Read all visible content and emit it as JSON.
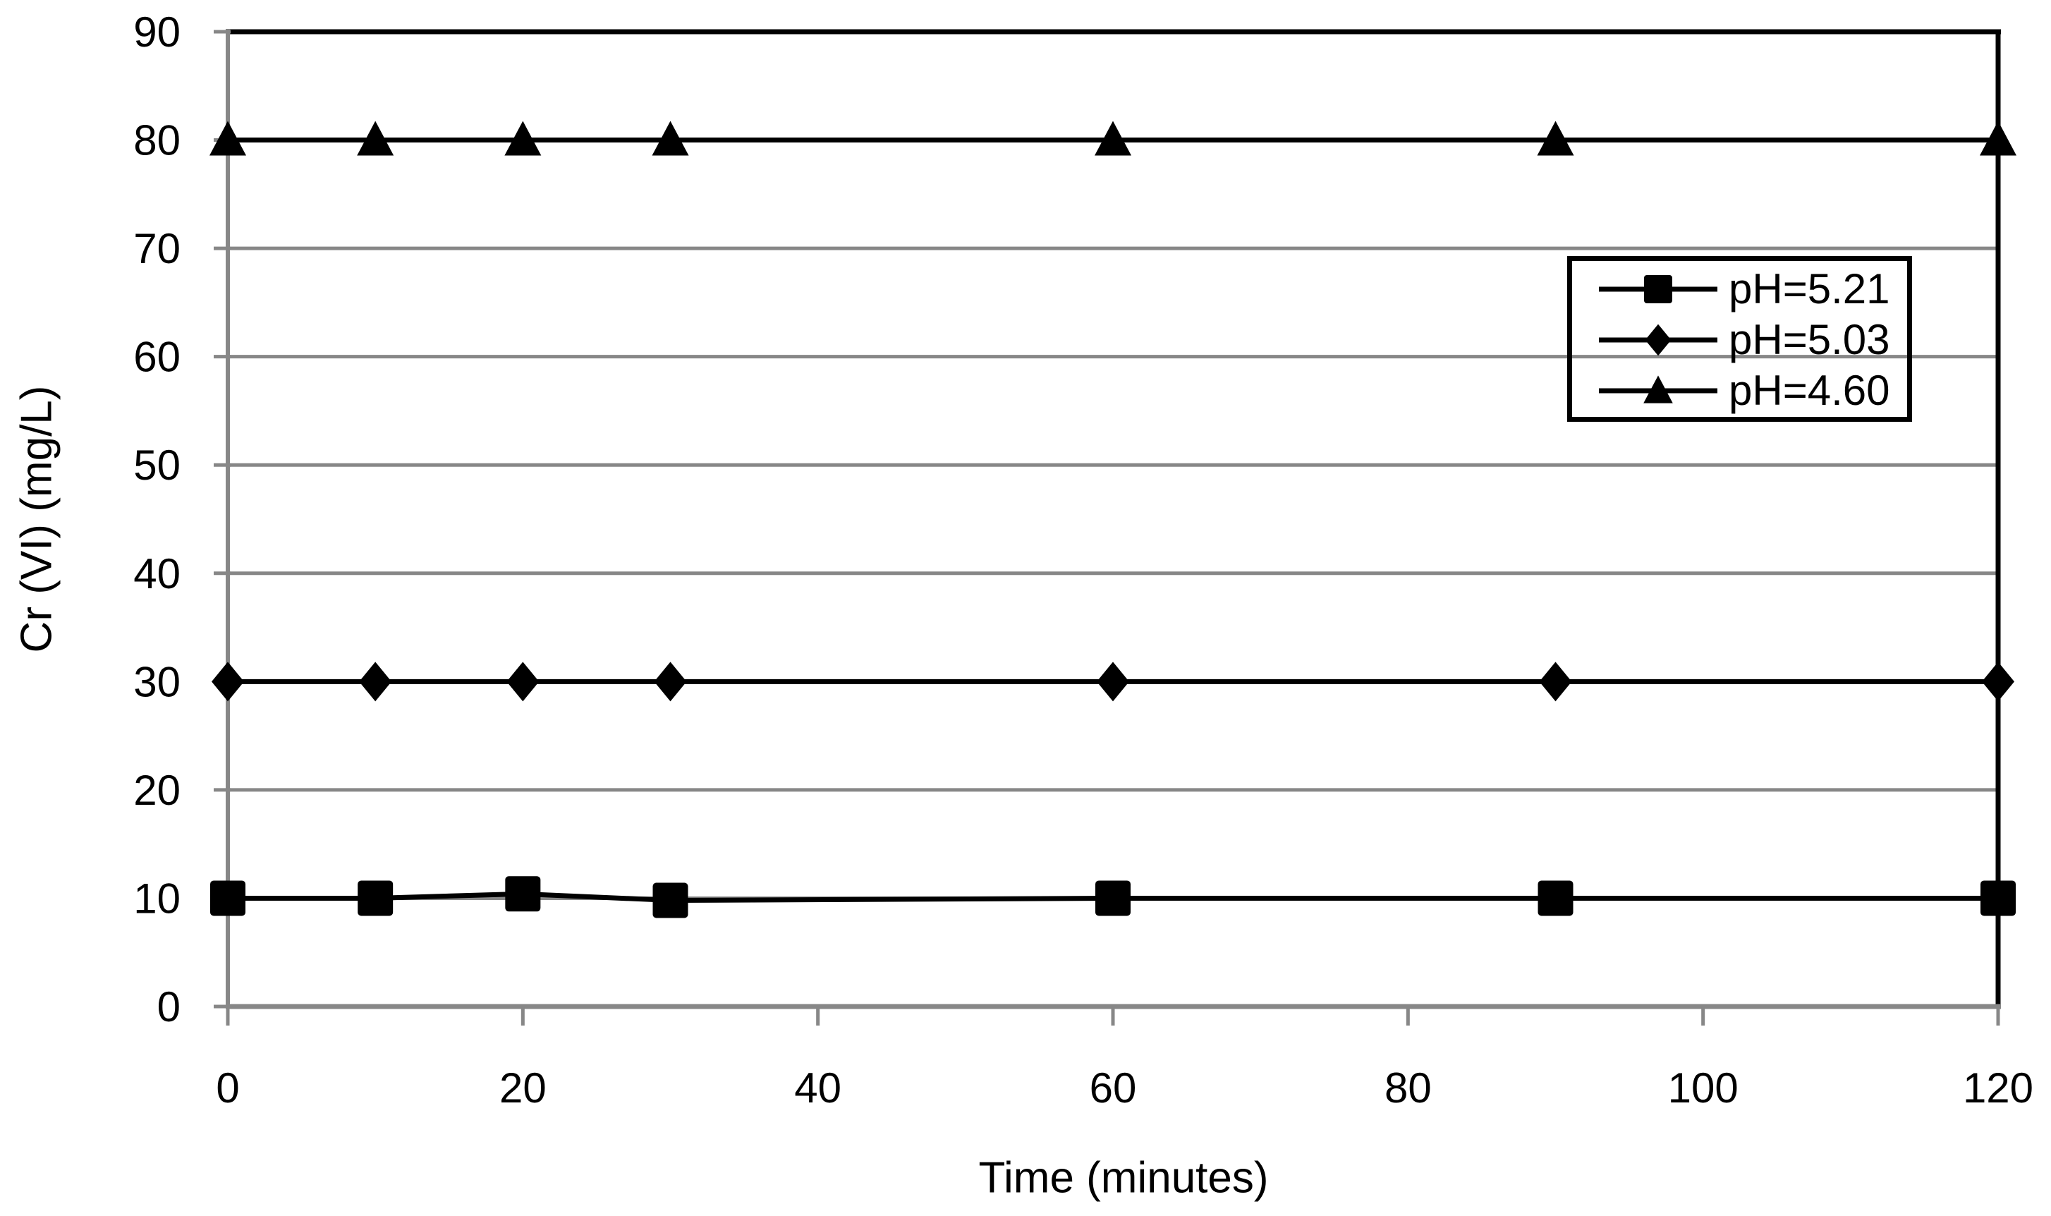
{
  "chart_data": {
    "type": "line",
    "title": "",
    "xlabel": "Time (minutes)",
    "ylabel": "Cr (VI) (mg/L)",
    "x": [
      0,
      10,
      20,
      30,
      60,
      90,
      120
    ],
    "series": [
      {
        "name": "pH=5.21",
        "marker": "square",
        "values": [
          10,
          10,
          10.4,
          9.8,
          10,
          10,
          10
        ]
      },
      {
        "name": "pH=5.03",
        "marker": "diamond",
        "values": [
          30,
          30,
          30,
          30,
          30,
          30,
          30
        ]
      },
      {
        "name": "pH=4.60",
        "marker": "triangle",
        "values": [
          80,
          80,
          80,
          80,
          80,
          80,
          80
        ]
      }
    ],
    "xlim": [
      0,
      120
    ],
    "ylim": [
      0,
      90
    ],
    "xticks": [
      0,
      20,
      40,
      60,
      80,
      100,
      120
    ],
    "yticks": [
      0,
      10,
      20,
      30,
      40,
      50,
      60,
      70,
      80,
      90
    ],
    "grid": "horizontal",
    "legend_position": "inside-top-right",
    "colors": {
      "series": "#000000",
      "grid": "#878787",
      "axis": "#878787",
      "border": "#000000",
      "text": "#000000"
    }
  }
}
